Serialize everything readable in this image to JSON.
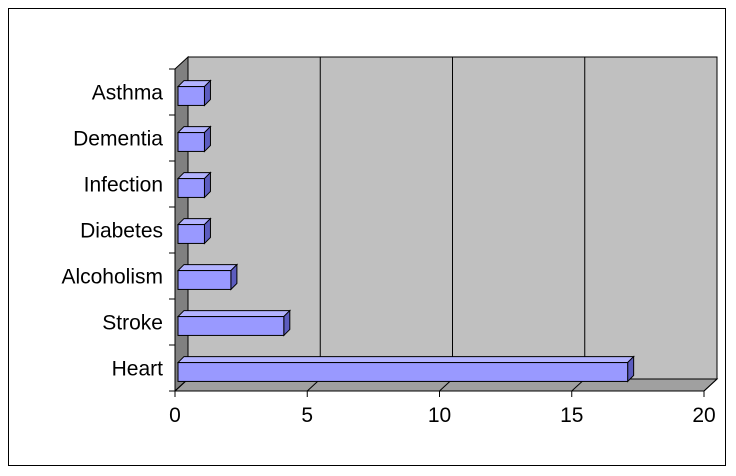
{
  "chart_data": {
    "type": "bar",
    "orientation": "horizontal",
    "style": "3d",
    "categories": [
      "Heart",
      "Stroke",
      "Alcoholism",
      "Diabetes",
      "Infection",
      "Dementia",
      "Asthma"
    ],
    "values": [
      17,
      4,
      2,
      1,
      1,
      1,
      1
    ],
    "xlim": [
      0,
      20
    ],
    "xticks": [
      0,
      5,
      10,
      15,
      20
    ],
    "title": "",
    "xlabel": "",
    "ylabel": "",
    "grid": "vertical",
    "legend": "none",
    "colors": {
      "bar_face": "#9999ff",
      "bar_top": "#b3b3ff",
      "bar_side": "#5c5cbf",
      "plot_back": "#c0c0c0",
      "plot_floor": "#a0a0a0",
      "plot_wall": "#808080"
    }
  }
}
